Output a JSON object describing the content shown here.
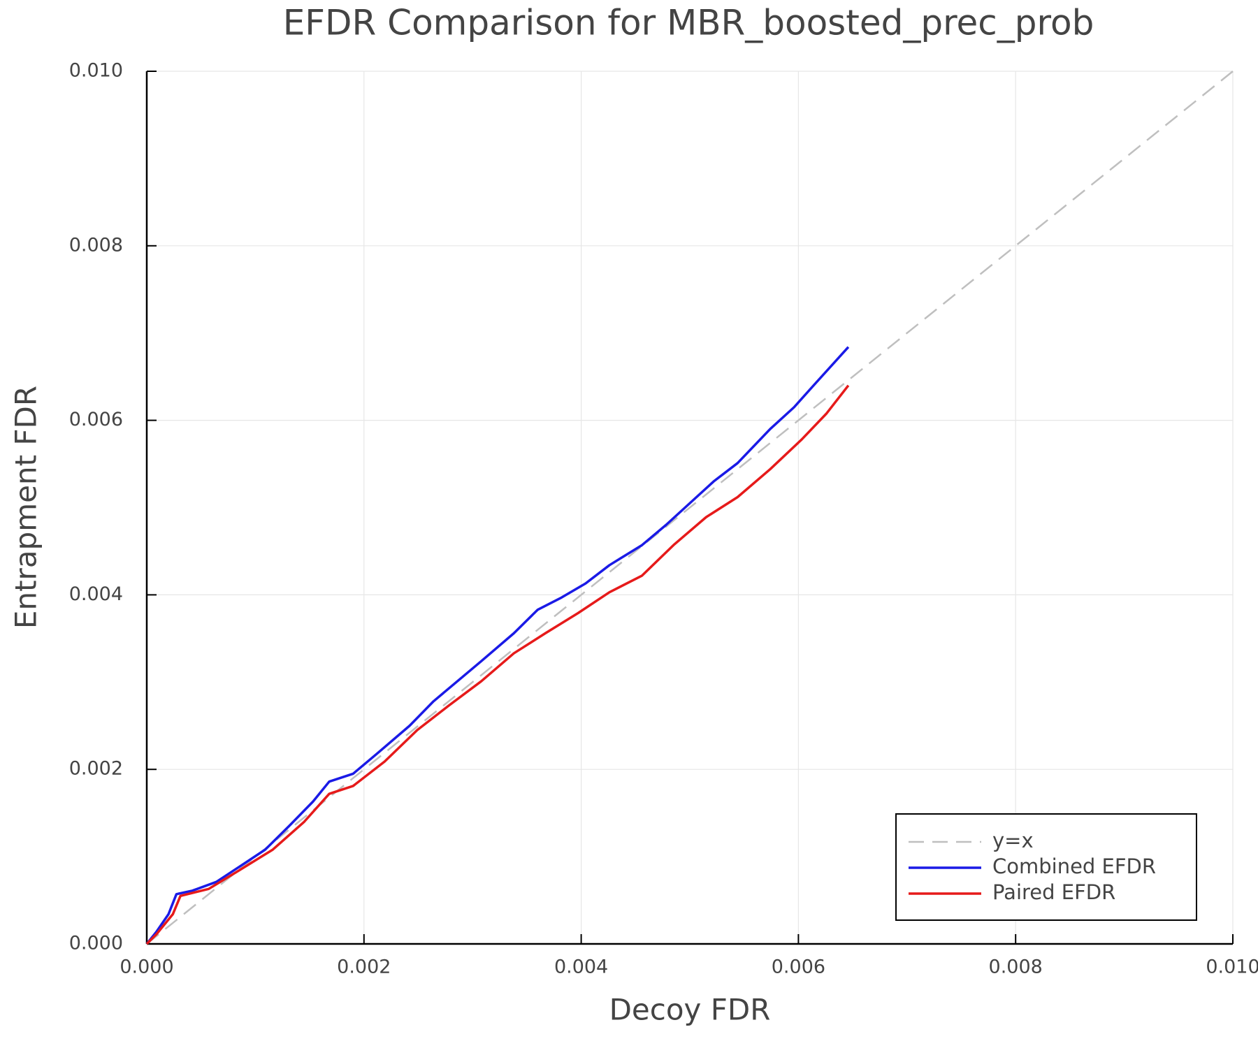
{
  "chart_data": {
    "type": "line",
    "title": "EFDR Comparison for MBR_boosted_prec_prob",
    "xlabel": "Decoy FDR",
    "ylabel": "Entrapment FDR",
    "xlim": [
      0,
      0.01
    ],
    "ylim": [
      0,
      0.01
    ],
    "xticks": [
      {
        "value": 0,
        "label": "0.000"
      },
      0.002,
      0.004,
      0.006,
      0.008,
      {
        "value": 0.01,
        "label": "0.010"
      }
    ],
    "yticks": [
      {
        "value": 0,
        "label": "0.000"
      },
      0.002,
      0.004,
      0.006,
      0.008,
      {
        "value": 0.01,
        "label": "0.010"
      }
    ],
    "grid": true,
    "legend": "bottom right",
    "series": [
      {
        "name": "y=x",
        "color": "#bfbfbf",
        "dashed": true,
        "x": [
          0,
          0.01
        ],
        "values": [
          0,
          0.01
        ]
      },
      {
        "name": "Combined EFDR",
        "color": "#1a1ae6",
        "dashed": false,
        "x": [
          0,
          8.86e-05,
          0.0002,
          0.000273,
          0.00042,
          0.00064,
          0.00086,
          0.00109,
          0.00131,
          0.00153,
          0.00168,
          0.0019,
          0.00212,
          0.00242,
          0.00264,
          0.00286,
          0.00308,
          0.00338,
          0.0036,
          0.00382,
          0.00404,
          0.00426,
          0.00456,
          0.00478,
          0.005,
          0.00522,
          0.00544,
          0.00574,
          0.00596,
          0.00614,
          0.00646
        ],
        "values": [
          0,
          0.000138,
          0.00034,
          0.00057,
          0.00061,
          0.00071,
          0.00089,
          0.00108,
          0.00135,
          0.00163,
          0.00186,
          0.00195,
          0.00218,
          0.0025,
          0.00278,
          0.00301,
          0.00324,
          0.00356,
          0.00383,
          0.00397,
          0.00413,
          0.00434,
          0.00457,
          0.0048,
          0.00505,
          0.0053,
          0.00551,
          0.0059,
          0.00615,
          0.0064,
          0.00684
        ]
      },
      {
        "name": "Paired EFDR",
        "color": "#e61a1a",
        "dashed": false,
        "x": [
          0,
          8.86e-05,
          0.00024,
          0.00031,
          0.00057,
          0.00086,
          0.00116,
          0.00145,
          0.00168,
          0.0019,
          0.00219,
          0.00249,
          0.00278,
          0.00308,
          0.00338,
          0.00367,
          0.00397,
          0.00426,
          0.00456,
          0.00485,
          0.00515,
          0.00544,
          0.00574,
          0.00603,
          0.00626,
          0.00646
        ],
        "values": [
          0,
          0.00011,
          0.00034,
          0.00055,
          0.00063,
          0.00085,
          0.00108,
          0.0014,
          0.00172,
          0.00181,
          0.00209,
          0.00245,
          0.00273,
          0.00301,
          0.00333,
          0.00356,
          0.00379,
          0.00403,
          0.00422,
          0.00457,
          0.00489,
          0.00512,
          0.00544,
          0.00578,
          0.00608,
          0.0064
        ]
      }
    ]
  }
}
